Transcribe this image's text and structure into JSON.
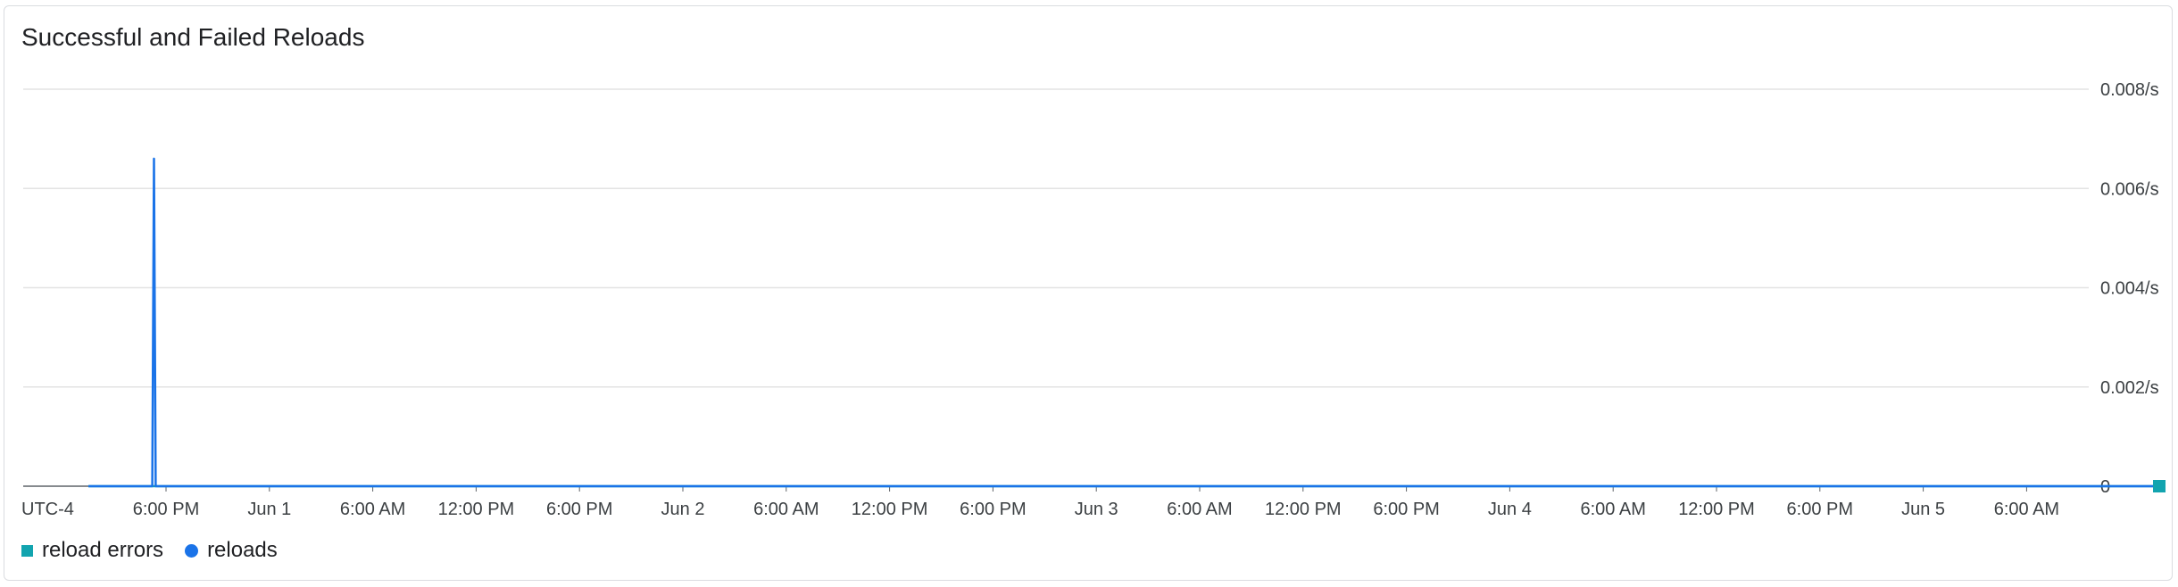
{
  "chart_data": {
    "type": "line",
    "title": "Successful and Failed Reloads",
    "timezone_label": "UTC-4",
    "x_ticks": [
      "6:00 PM",
      "Jun 1",
      "6:00 AM",
      "12:00 PM",
      "6:00 PM",
      "Jun 2",
      "6:00 AM",
      "12:00 PM",
      "6:00 PM",
      "Jun 3",
      "6:00 AM",
      "12:00 PM",
      "6:00 PM",
      "Jun 4",
      "6:00 AM",
      "12:00 PM",
      "6:00 PM",
      "Jun 5",
      "6:00 AM"
    ],
    "x_start_tick_offset_hours": -5.0,
    "x_end_tick_offset_hours": 1.75,
    "y_ticks": [
      "0.008/s",
      "0.006/s",
      "0.004/s",
      "0.002/s",
      "0"
    ],
    "ylim": [
      0,
      0.008
    ],
    "grid": true,
    "legend_position": "bottom-left",
    "series": [
      {
        "name": "reload errors",
        "color": "#12a4af",
        "marker": "square",
        "points": [
          [
            -4.5,
            0
          ],
          [
            115.7,
            0
          ]
        ]
      },
      {
        "name": "reloads",
        "color": "#1a73e8",
        "marker": "circle",
        "points": [
          [
            -4.5,
            0
          ],
          [
            -0.8,
            0
          ],
          [
            -0.7,
            0.0066
          ],
          [
            -0.6,
            0
          ],
          [
            115.7,
            0
          ]
        ]
      }
    ],
    "end_marker_series": "reload errors"
  }
}
